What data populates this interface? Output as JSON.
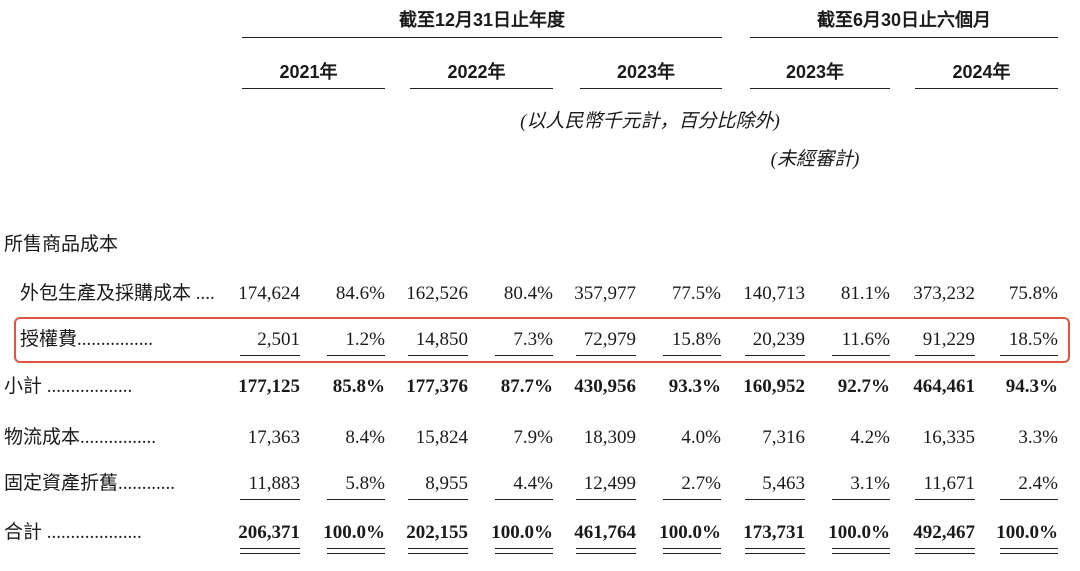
{
  "table": {
    "groups": [
      "截至12月31日止年度",
      "截至6月30日止六個月"
    ],
    "years": [
      "2021年",
      "2022年",
      "2023年",
      "2023年",
      "2024年"
    ],
    "unit_note": "(以人民幣千元計，百分比除外)",
    "audit_note": "(未經審計)",
    "section": "所售商品成本",
    "rows": [
      {
        "label": "外包生產及採購成本 ....",
        "cells": [
          "174,624",
          "84.6%",
          "162,526",
          "80.4%",
          "357,977",
          "77.5%",
          "140,713",
          "81.1%",
          "373,232",
          "75.8%"
        ]
      },
      {
        "label": "授權費................",
        "cells": [
          "2,501",
          "1.2%",
          "14,850",
          "7.3%",
          "72,979",
          "15.8%",
          "20,239",
          "11.6%",
          "91,229",
          "18.5%"
        ]
      },
      {
        "label": "小計 ..................",
        "cells": [
          "177,125",
          "85.8%",
          "177,376",
          "87.7%",
          "430,956",
          "93.3%",
          "160,952",
          "92.7%",
          "464,461",
          "94.3%"
        ]
      },
      {
        "label": "物流成本................",
        "cells": [
          "17,363",
          "8.4%",
          "15,824",
          "7.9%",
          "18,309",
          "4.0%",
          "7,316",
          "4.2%",
          "16,335",
          "3.3%"
        ]
      },
      {
        "label": "固定資產折舊............",
        "cells": [
          "11,883",
          "5.8%",
          "8,955",
          "4.4%",
          "12,499",
          "2.7%",
          "5,463",
          "3.1%",
          "11,671",
          "2.4%"
        ]
      },
      {
        "label": "合計 ....................",
        "cells": [
          "206,371",
          "100.0%",
          "202,155",
          "100.0%",
          "461,764",
          "100.0%",
          "173,731",
          "100.0%",
          "492,467",
          "100.0%"
        ]
      }
    ]
  }
}
